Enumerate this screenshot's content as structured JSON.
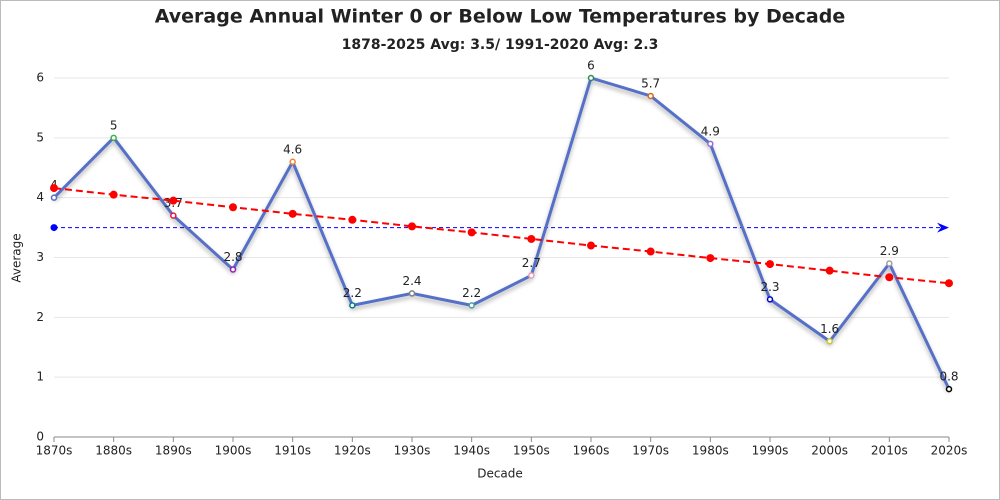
{
  "chart_data": {
    "type": "line",
    "title": "Average Annual Winter 0 or Below Low Temperatures by Decade",
    "subtitle": "1878-2025 Avg: 3.5/ 1991-2020 Avg: 2.3",
    "x_label": "Decade",
    "y_label": "Average",
    "categories": [
      "1870s",
      "1880s",
      "1890s",
      "1900s",
      "1910s",
      "1920s",
      "1930s",
      "1940s",
      "1950s",
      "1960s",
      "1970s",
      "1980s",
      "1990s",
      "2000s",
      "2010s",
      "2020s"
    ],
    "series": [
      {
        "color": "#5470c6",
        "values": [
          4,
          5,
          3.7,
          2.8,
          4.6,
          2.2,
          2.4,
          2.2,
          2.7,
          6,
          5.7,
          4.9,
          2.3,
          1.6,
          2.9,
          0.8
        ],
        "marker_colors": [
          "#5470c6",
          "#3cb44b",
          "#e6194b",
          "#911eb4",
          "#f58231",
          "#008080",
          "#808080",
          "#46a0a0",
          "#e6a0b4",
          "#2e8b57",
          "#d2691e",
          "#9370db",
          "#0000cd",
          "#c8c832",
          "#a0a0a0",
          "#000000"
        ],
        "data_labels": true
      },
      {
        "color": "#ff0000",
        "values": [
          4.16,
          4.05,
          3.95,
          3.84,
          3.73,
          3.63,
          3.52,
          3.42,
          3.31,
          3.2,
          3.1,
          2.99,
          2.89,
          2.78,
          2.67,
          2.57
        ],
        "dashed": true
      }
    ],
    "average_line": 3.5,
    "average_color": "#0000ff",
    "ylim": [
      0,
      6
    ],
    "yticks": [
      0,
      1,
      2,
      3,
      4,
      5,
      6
    ],
    "grid": true
  }
}
